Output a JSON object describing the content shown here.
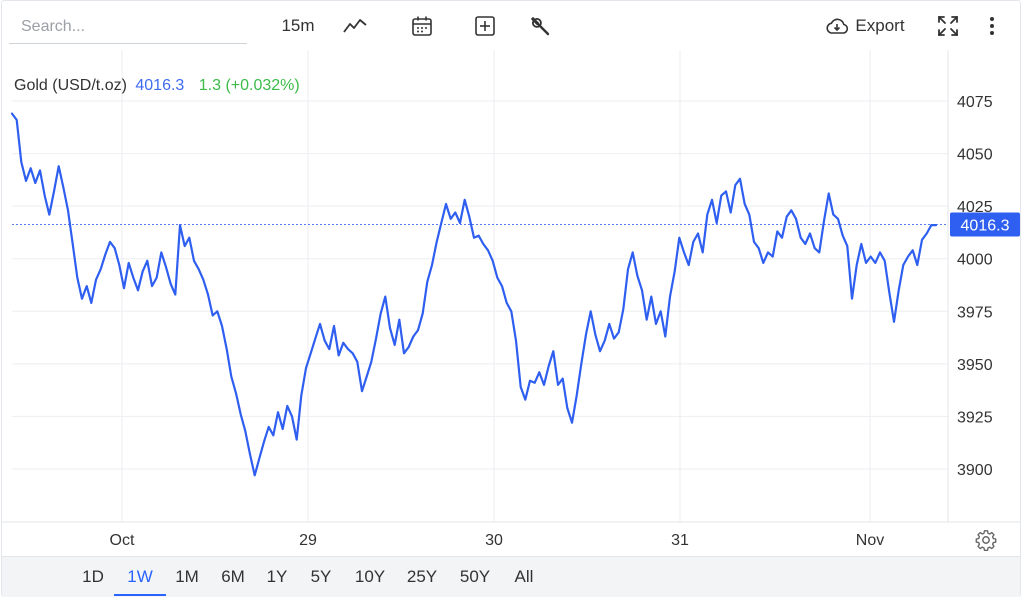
{
  "toolbar": {
    "search_placeholder": "Search...",
    "interval": "15m",
    "chart_type_icon": "line-chart-icon",
    "calendar_icon": "calendar-icon",
    "compare_icon": "plus-square-icon",
    "tools_icon": "wrench-icon",
    "export_label": "Export",
    "export_icon": "cloud-download-icon",
    "fullscreen_icon": "fullscreen-icon",
    "more_icon": "more-vertical-icon"
  },
  "legend": {
    "name": "Gold (USD/t.oz)",
    "last": "4016.3",
    "change": "1.3 (+0.032%)"
  },
  "colors": {
    "line": "#2f5ff0",
    "price_label_bg": "#2f5ff0",
    "change_positive": "#3cbb48",
    "grid": "#eceef1",
    "active_range": "#2962ff"
  },
  "ranges": {
    "items": [
      "1D",
      "1W",
      "1M",
      "6M",
      "1Y",
      "5Y",
      "10Y",
      "25Y",
      "50Y",
      "All"
    ],
    "active": "1W"
  },
  "settings_icon": "gear-icon",
  "chart_data": {
    "type": "line",
    "title": "",
    "xlabel": "",
    "ylabel": "",
    "x_ticks": [
      "Oct",
      "29",
      "30",
      "31",
      "Nov"
    ],
    "y_ticks": [
      3900,
      3925,
      3950,
      3975,
      4000,
      4025,
      4050,
      4075
    ],
    "ylim": [
      3867,
      4096
    ],
    "grid": true,
    "last_price_label": "4016.3",
    "series": [
      {
        "name": "Gold (USD/t.oz)",
        "values": [
          4069,
          4066,
          4046,
          4037,
          4043,
          4036,
          4042,
          4030,
          4021,
          4032,
          4044,
          4034,
          4023,
          4007,
          3991,
          3981,
          3987,
          3979,
          3990,
          3995,
          4002,
          4008,
          4005,
          3997,
          3986,
          3998,
          3991,
          3985,
          3994,
          3999,
          3987,
          3991,
          4003,
          3996,
          3988,
          3983,
          4016,
          4006,
          4010,
          3999,
          3995,
          3990,
          3983,
          3973,
          3975,
          3968,
          3957,
          3944,
          3936,
          3926,
          3918,
          3907,
          3897,
          3905,
          3913,
          3920,
          3916,
          3927,
          3919,
          3930,
          3925,
          3914,
          3935,
          3948,
          3955,
          3962,
          3969,
          3961,
          3957,
          3968,
          3954,
          3960,
          3957,
          3955,
          3951,
          3937,
          3944,
          3951,
          3962,
          3974,
          3982,
          3967,
          3959,
          3971,
          3955,
          3958,
          3963,
          3966,
          3974,
          3989,
          3997,
          4008,
          4017,
          4026,
          4019,
          4022,
          4017,
          4028,
          4020,
          4010,
          4011,
          4007,
          4004,
          3999,
          3991,
          3987,
          3979,
          3975,
          3961,
          3939,
          3933,
          3942,
          3941,
          3946,
          3940,
          3949,
          3956,
          3940,
          3943,
          3929,
          3922,
          3935,
          3950,
          3964,
          3975,
          3964,
          3956,
          3961,
          3969,
          3962,
          3965,
          3976,
          3995,
          4003,
          3992,
          3985,
          3971,
          3982,
          3969,
          3975,
          3963,
          3982,
          3994,
          4010,
          4003,
          3997,
          4008,
          4012,
          4003,
          4021,
          4028,
          4017,
          4030,
          4032,
          4022,
          4035,
          4038,
          4026,
          4021,
          4008,
          4005,
          3998,
          4003,
          4001,
          4013,
          4010,
          4020,
          4023,
          4019,
          4010,
          4007,
          4012,
          4005,
          4003,
          4018,
          4031,
          4021,
          4019,
          4011,
          4006,
          3981,
          3997,
          4007,
          3998,
          4001,
          3998,
          4003,
          3999,
          3984,
          3970,
          3985,
          3997,
          4001,
          4004,
          3997,
          4009,
          4012,
          4016,
          4016
        ]
      }
    ]
  }
}
